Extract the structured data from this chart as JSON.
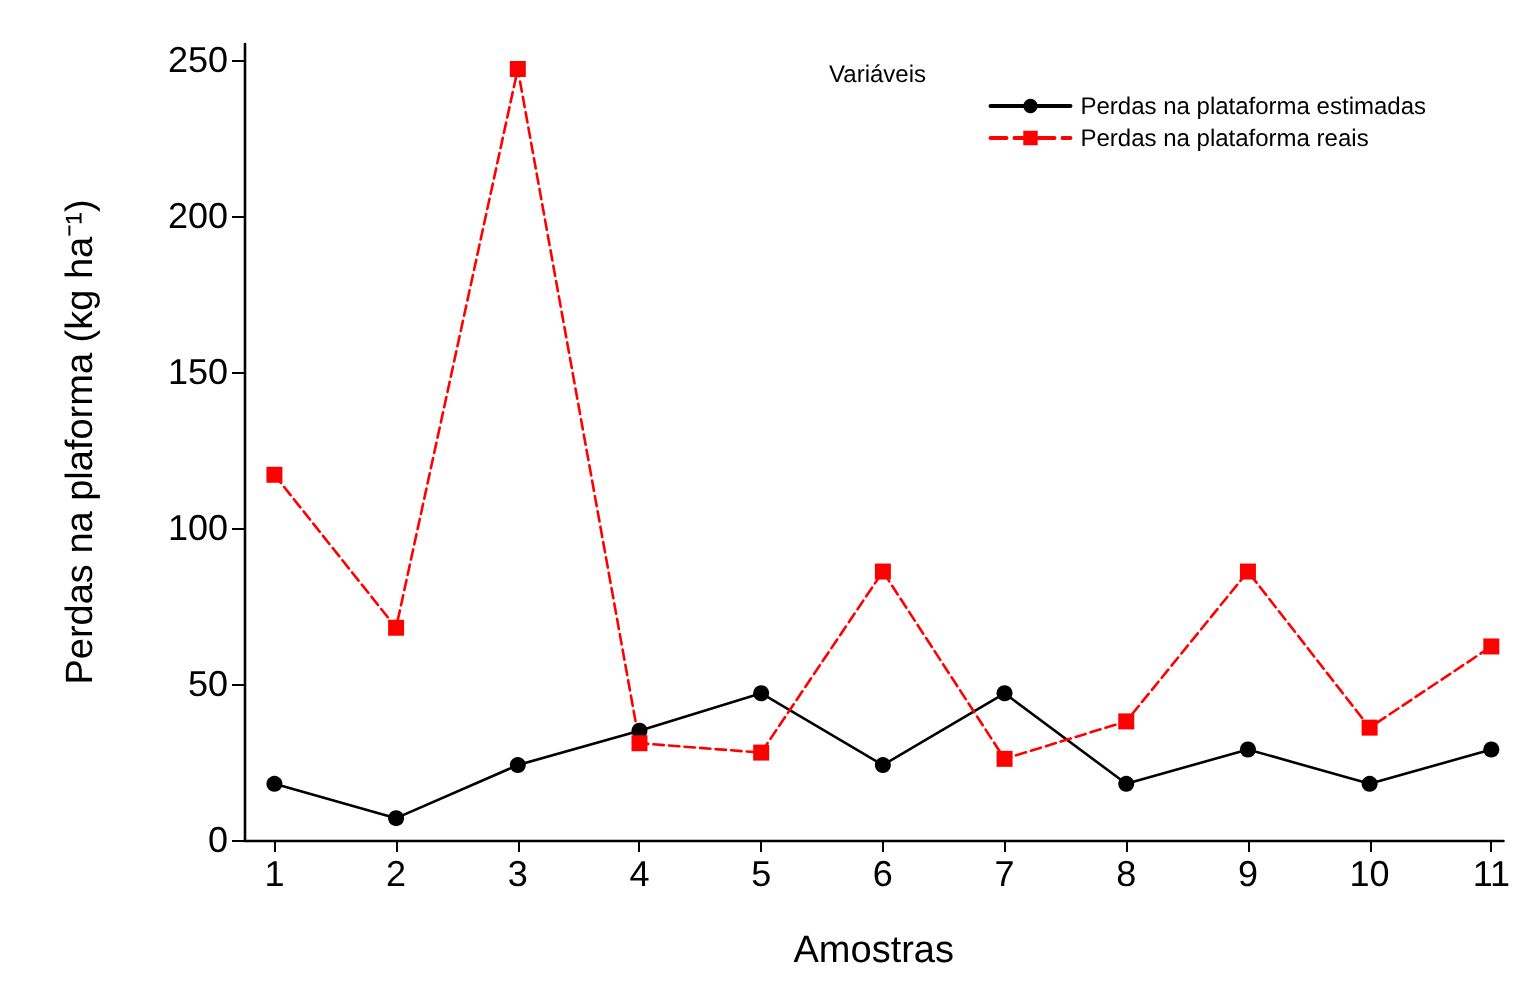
{
  "chart_data": {
    "type": "line",
    "xlabel": "Amostras",
    "ylabel": "Perdas na plaforma (kg ha⁻¹)",
    "legend_title": "Variáveis",
    "x": [
      1,
      2,
      3,
      4,
      5,
      6,
      7,
      8,
      9,
      10,
      11
    ],
    "series": [
      {
        "name": "Perdas na plataforma estimadas",
        "color": "#000000",
        "marker": "circle",
        "line_style": "solid",
        "values": [
          18,
          7,
          24,
          35,
          47,
          24,
          47,
          18,
          29,
          18,
          29
        ]
      },
      {
        "name": "Perdas na plataforma reais",
        "color": "#ff0000",
        "marker": "square",
        "line_style": "dashed",
        "values": [
          117,
          68,
          247,
          31,
          28,
          86,
          26,
          38,
          86,
          36,
          62
        ]
      }
    ],
    "xlim": [
      0.75,
      11.1
    ],
    "xticks": [
      1,
      2,
      3,
      4,
      5,
      6,
      7,
      8,
      9,
      10,
      11
    ],
    "ylim": [
      0,
      255
    ],
    "yticks": [
      0,
      50,
      100,
      150,
      200,
      250
    ],
    "grid": false,
    "legend": "top right"
  }
}
